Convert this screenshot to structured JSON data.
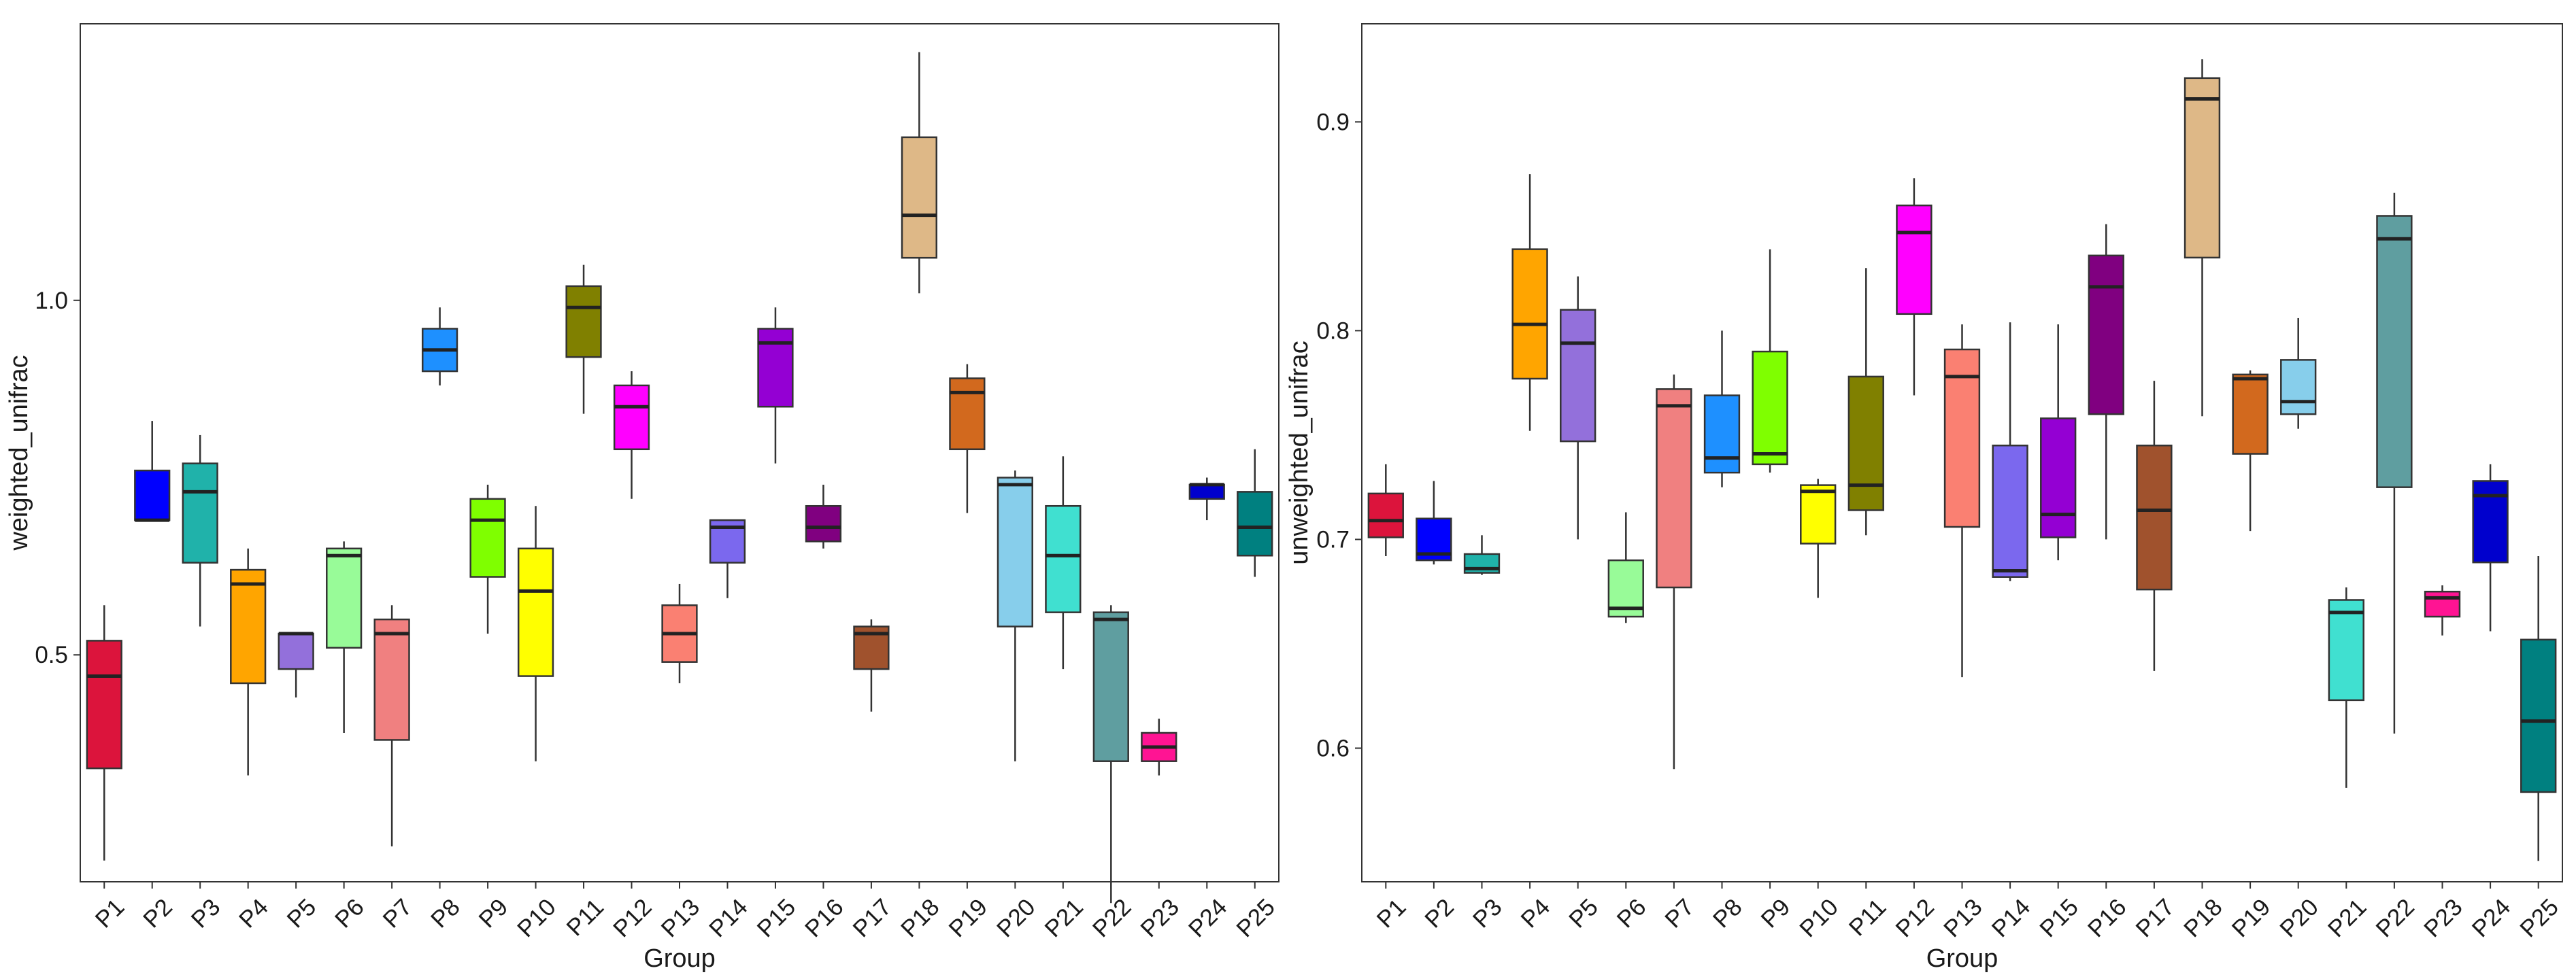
{
  "chart_data": [
    {
      "type": "boxplot",
      "title": "",
      "xlabel": "Group",
      "ylabel": "weighted_unifrac",
      "ylim": [
        0.18,
        1.39
      ],
      "yticks": [
        0.5,
        1.0
      ],
      "ytick_labels": [
        "0.5",
        "1.0"
      ],
      "grid": false,
      "legend": "none",
      "groups": [
        {
          "name": "P1",
          "color": "#DC143C",
          "whisker_low": 0.21,
          "q1": 0.34,
          "median": 0.47,
          "q3": 0.52,
          "whisker_high": 0.57
        },
        {
          "name": "P2",
          "color": "#0000FF",
          "whisker_low": 0.69,
          "q1": 0.69,
          "median": 0.69,
          "q3": 0.76,
          "whisker_high": 0.83
        },
        {
          "name": "P3",
          "color": "#20B2AA",
          "whisker_low": 0.54,
          "q1": 0.63,
          "median": 0.73,
          "q3": 0.77,
          "whisker_high": 0.81
        },
        {
          "name": "P4",
          "color": "#FFA500",
          "whisker_low": 0.33,
          "q1": 0.46,
          "median": 0.6,
          "q3": 0.62,
          "whisker_high": 0.65
        },
        {
          "name": "P5",
          "color": "#9370DB",
          "whisker_low": 0.44,
          "q1": 0.48,
          "median": 0.53,
          "q3": 0.53,
          "whisker_high": 0.53
        },
        {
          "name": "P6",
          "color": "#98FB98",
          "whisker_low": 0.39,
          "q1": 0.51,
          "median": 0.64,
          "q3": 0.65,
          "whisker_high": 0.66
        },
        {
          "name": "P7",
          "color": "#F08080",
          "whisker_low": 0.23,
          "q1": 0.38,
          "median": 0.53,
          "q3": 0.55,
          "whisker_high": 0.57
        },
        {
          "name": "P8",
          "color": "#1E90FF",
          "whisker_low": 0.88,
          "q1": 0.9,
          "median": 0.93,
          "q3": 0.96,
          "whisker_high": 0.99
        },
        {
          "name": "P9",
          "color": "#7FFF00",
          "whisker_low": 0.53,
          "q1": 0.61,
          "median": 0.69,
          "q3": 0.72,
          "whisker_high": 0.74
        },
        {
          "name": "P10",
          "color": "#FFFF00",
          "whisker_low": 0.35,
          "q1": 0.47,
          "median": 0.59,
          "q3": 0.65,
          "whisker_high": 0.71
        },
        {
          "name": "P11",
          "color": "#808000",
          "whisker_low": 0.84,
          "q1": 0.92,
          "median": 0.99,
          "q3": 1.02,
          "whisker_high": 1.05
        },
        {
          "name": "P12",
          "color": "#FF00FF",
          "whisker_low": 0.72,
          "q1": 0.79,
          "median": 0.85,
          "q3": 0.88,
          "whisker_high": 0.9
        },
        {
          "name": "P13",
          "color": "#FA8072",
          "whisker_low": 0.46,
          "q1": 0.49,
          "median": 0.53,
          "q3": 0.57,
          "whisker_high": 0.6
        },
        {
          "name": "P14",
          "color": "#7B68EE",
          "whisker_low": 0.58,
          "q1": 0.63,
          "median": 0.68,
          "q3": 0.69,
          "whisker_high": 0.69
        },
        {
          "name": "P15",
          "color": "#9400D3",
          "whisker_low": 0.77,
          "q1": 0.85,
          "median": 0.94,
          "q3": 0.96,
          "whisker_high": 0.99
        },
        {
          "name": "P16",
          "color": "#800080",
          "whisker_low": 0.65,
          "q1": 0.66,
          "median": 0.68,
          "q3": 0.71,
          "whisker_high": 0.74
        },
        {
          "name": "P17",
          "color": "#A0522D",
          "whisker_low": 0.42,
          "q1": 0.48,
          "median": 0.53,
          "q3": 0.54,
          "whisker_high": 0.55
        },
        {
          "name": "P18",
          "color": "#DEB887",
          "whisker_low": 1.01,
          "q1": 1.06,
          "median": 1.12,
          "q3": 1.23,
          "whisker_high": 1.35
        },
        {
          "name": "P19",
          "color": "#D2691E",
          "whisker_low": 0.7,
          "q1": 0.79,
          "median": 0.87,
          "q3": 0.89,
          "whisker_high": 0.91
        },
        {
          "name": "P20",
          "color": "#87CEEB",
          "whisker_low": 0.35,
          "q1": 0.54,
          "median": 0.74,
          "q3": 0.75,
          "whisker_high": 0.76
        },
        {
          "name": "P21",
          "color": "#40E0D0",
          "whisker_low": 0.48,
          "q1": 0.56,
          "median": 0.64,
          "q3": 0.71,
          "whisker_high": 0.78
        },
        {
          "name": "P22",
          "color": "#5F9EA0",
          "whisker_low": 0.15,
          "q1": 0.35,
          "median": 0.55,
          "q3": 0.56,
          "whisker_high": 0.57
        },
        {
          "name": "P23",
          "color": "#FF1493",
          "whisker_low": 0.33,
          "q1": 0.35,
          "median": 0.37,
          "q3": 0.39,
          "whisker_high": 0.41
        },
        {
          "name": "P24",
          "color": "#0000CD",
          "whisker_low": 0.69,
          "q1": 0.72,
          "median": 0.74,
          "q3": 0.74,
          "whisker_high": 0.75
        },
        {
          "name": "P25",
          "color": "#008080",
          "whisker_low": 0.61,
          "q1": 0.64,
          "median": 0.68,
          "q3": 0.73,
          "whisker_high": 0.79
        }
      ]
    },
    {
      "type": "boxplot",
      "title": "",
      "xlabel": "Group",
      "ylabel": "unweighted_unifrac",
      "ylim": [
        0.536,
        0.947
      ],
      "yticks": [
        0.6,
        0.7,
        0.8,
        0.9
      ],
      "ytick_labels": [
        "0.6",
        "0.7",
        "0.8",
        "0.9"
      ],
      "grid": false,
      "legend": "none",
      "groups": [
        {
          "name": "P1",
          "color": "#DC143C",
          "whisker_low": 0.692,
          "q1": 0.701,
          "median": 0.709,
          "q3": 0.722,
          "whisker_high": 0.736
        },
        {
          "name": "P2",
          "color": "#0000FF",
          "whisker_low": 0.688,
          "q1": 0.69,
          "median": 0.693,
          "q3": 0.71,
          "whisker_high": 0.728
        },
        {
          "name": "P3",
          "color": "#20B2AA",
          "whisker_low": 0.683,
          "q1": 0.684,
          "median": 0.686,
          "q3": 0.693,
          "whisker_high": 0.702
        },
        {
          "name": "P4",
          "color": "#FFA500",
          "whisker_low": 0.752,
          "q1": 0.777,
          "median": 0.803,
          "q3": 0.839,
          "whisker_high": 0.875
        },
        {
          "name": "P5",
          "color": "#9370DB",
          "whisker_low": 0.7,
          "q1": 0.747,
          "median": 0.794,
          "q3": 0.81,
          "whisker_high": 0.826
        },
        {
          "name": "P6",
          "color": "#98FB98",
          "whisker_low": 0.66,
          "q1": 0.663,
          "median": 0.667,
          "q3": 0.69,
          "whisker_high": 0.713
        },
        {
          "name": "P7",
          "color": "#F08080",
          "whisker_low": 0.59,
          "q1": 0.677,
          "median": 0.764,
          "q3": 0.772,
          "whisker_high": 0.779
        },
        {
          "name": "P8",
          "color": "#1E90FF",
          "whisker_low": 0.725,
          "q1": 0.732,
          "median": 0.739,
          "q3": 0.769,
          "whisker_high": 0.8
        },
        {
          "name": "P9",
          "color": "#7FFF00",
          "whisker_low": 0.732,
          "q1": 0.736,
          "median": 0.741,
          "q3": 0.79,
          "whisker_high": 0.839
        },
        {
          "name": "P10",
          "color": "#FFFF00",
          "whisker_low": 0.672,
          "q1": 0.698,
          "median": 0.723,
          "q3": 0.726,
          "whisker_high": 0.729
        },
        {
          "name": "P11",
          "color": "#808000",
          "whisker_low": 0.702,
          "q1": 0.714,
          "median": 0.726,
          "q3": 0.778,
          "whisker_high": 0.83
        },
        {
          "name": "P12",
          "color": "#FF00FF",
          "whisker_low": 0.769,
          "q1": 0.808,
          "median": 0.847,
          "q3": 0.86,
          "whisker_high": 0.873
        },
        {
          "name": "P13",
          "color": "#FA8072",
          "whisker_low": 0.634,
          "q1": 0.706,
          "median": 0.778,
          "q3": 0.791,
          "whisker_high": 0.803
        },
        {
          "name": "P14",
          "color": "#7B68EE",
          "whisker_low": 0.68,
          "q1": 0.682,
          "median": 0.685,
          "q3": 0.745,
          "whisker_high": 0.804
        },
        {
          "name": "P15",
          "color": "#9400D3",
          "whisker_low": 0.69,
          "q1": 0.701,
          "median": 0.712,
          "q3": 0.758,
          "whisker_high": 0.803
        },
        {
          "name": "P16",
          "color": "#800080",
          "whisker_low": 0.7,
          "q1": 0.76,
          "median": 0.821,
          "q3": 0.836,
          "whisker_high": 0.851
        },
        {
          "name": "P17",
          "color": "#A0522D",
          "whisker_low": 0.637,
          "q1": 0.676,
          "median": 0.714,
          "q3": 0.745,
          "whisker_high": 0.776
        },
        {
          "name": "P18",
          "color": "#DEB887",
          "whisker_low": 0.759,
          "q1": 0.835,
          "median": 0.911,
          "q3": 0.921,
          "whisker_high": 0.93
        },
        {
          "name": "P19",
          "color": "#D2691E",
          "whisker_low": 0.704,
          "q1": 0.741,
          "median": 0.777,
          "q3": 0.779,
          "whisker_high": 0.781
        },
        {
          "name": "P20",
          "color": "#87CEEB",
          "whisker_low": 0.753,
          "q1": 0.76,
          "median": 0.766,
          "q3": 0.786,
          "whisker_high": 0.806
        },
        {
          "name": "P21",
          "color": "#40E0D0",
          "whisker_low": 0.581,
          "q1": 0.623,
          "median": 0.665,
          "q3": 0.671,
          "whisker_high": 0.677
        },
        {
          "name": "P22",
          "color": "#5F9EA0",
          "whisker_low": 0.607,
          "q1": 0.725,
          "median": 0.844,
          "q3": 0.855,
          "whisker_high": 0.866
        },
        {
          "name": "P23",
          "color": "#FF1493",
          "whisker_low": 0.654,
          "q1": 0.663,
          "median": 0.672,
          "q3": 0.675,
          "whisker_high": 0.678
        },
        {
          "name": "P24",
          "color": "#0000CD",
          "whisker_low": 0.656,
          "q1": 0.689,
          "median": 0.721,
          "q3": 0.728,
          "whisker_high": 0.736
        },
        {
          "name": "P25",
          "color": "#008080",
          "whisker_low": 0.546,
          "q1": 0.579,
          "median": 0.613,
          "q3": 0.652,
          "whisker_high": 0.692
        }
      ]
    }
  ]
}
